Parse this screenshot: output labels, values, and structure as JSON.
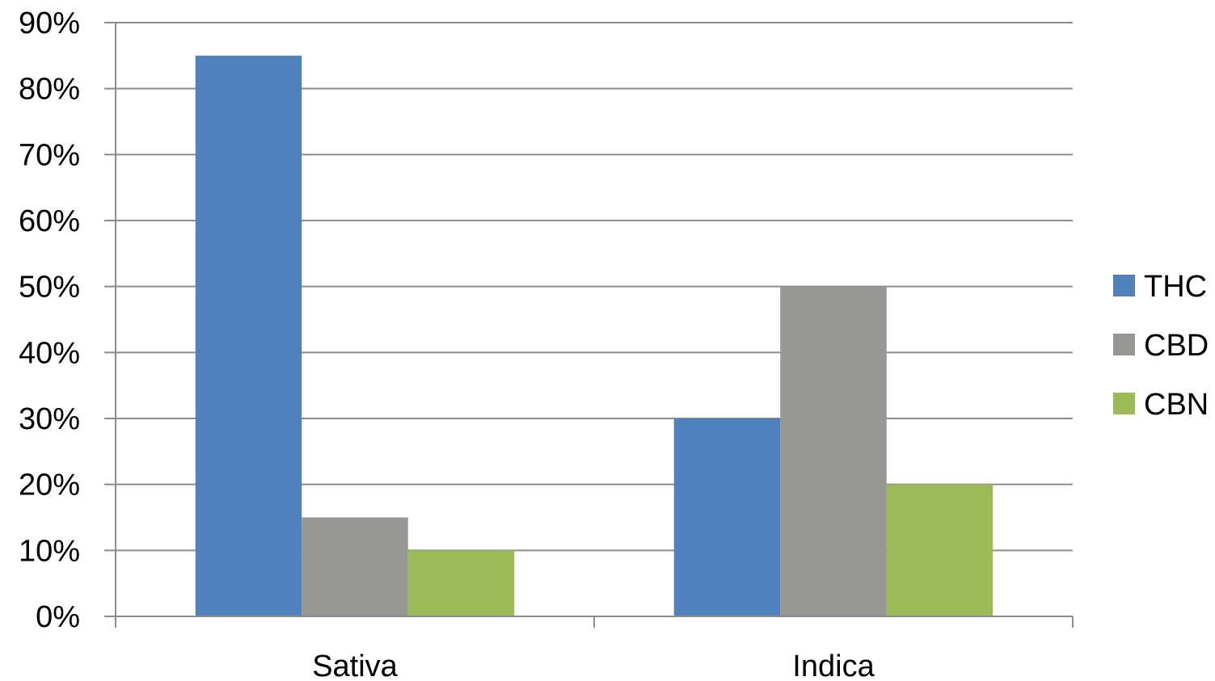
{
  "chart_data": {
    "type": "bar",
    "categories": [
      "Sativa",
      "Indica"
    ],
    "series": [
      {
        "name": "THC",
        "values": [
          85,
          30
        ],
        "color": "#4F81BD"
      },
      {
        "name": "CBD",
        "values": [
          15,
          50
        ],
        "color": "#969692"
      },
      {
        "name": "CBN",
        "values": [
          10,
          20
        ],
        "color": "#9BBB59"
      }
    ],
    "y_unit": "%",
    "ylim": [
      0,
      90
    ],
    "yticks": [
      0,
      10,
      20,
      30,
      40,
      50,
      60,
      70,
      80,
      90
    ],
    "ytick_labels": [
      "0%",
      "10%",
      "20%",
      "30%",
      "40%",
      "50%",
      "60%",
      "70%",
      "80%",
      "90%"
    ],
    "title": "",
    "xlabel": "",
    "ylabel": "",
    "grid": true,
    "legend_position": "right",
    "colors": {
      "gridline": "#8C8C8C",
      "axis": "#8C8C8C",
      "text": "#000000"
    }
  }
}
